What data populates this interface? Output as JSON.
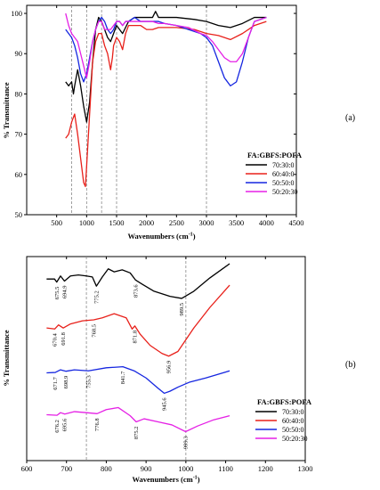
{
  "colors": {
    "70:30:0": "#000000",
    "60:40:0": "#e8201a",
    "50:50:0": "#1526e0",
    "50:20:30": "#e520e5"
  },
  "chart_data": [
    {
      "type": "line",
      "panel_label": "(a)",
      "xlabel": "Wavenumbers (cm",
      "xlabel_sup": "-1",
      "xlabel_tail": ")",
      "ylabel": "% Transmittance",
      "xlim": [
        0,
        4500
      ],
      "ylim": [
        50,
        102
      ],
      "xticks": [
        "500",
        "1000",
        "1500",
        "2000",
        "2500",
        "3000",
        "3500",
        "4000",
        "4500"
      ],
      "yticks": [
        "50",
        "60",
        "70",
        "80",
        "90",
        "100"
      ],
      "guides": [
        750,
        1000,
        1250,
        1500,
        3000
      ],
      "legend_title": "FA:GBFS:POFA",
      "legend_position": "right",
      "series": [
        {
          "name": "70:30:0",
          "color": "#000000",
          "x": [
            650,
            700,
            750,
            780,
            800,
            850,
            900,
            950,
            1000,
            1050,
            1100,
            1150,
            1200,
            1250,
            1300,
            1350,
            1400,
            1450,
            1500,
            1550,
            1600,
            1700,
            1800,
            1900,
            2000,
            2100,
            2150,
            2200,
            2300,
            2500,
            2800,
            3000,
            3200,
            3400,
            3600,
            3800,
            4000
          ],
          "y": [
            83,
            82,
            83,
            80,
            82,
            86,
            82,
            77,
            73,
            78,
            88,
            96,
            99,
            98,
            96,
            94,
            93,
            95,
            97,
            96,
            95,
            98,
            99,
            99,
            99,
            99,
            100.5,
            99,
            99,
            99,
            98.5,
            98,
            97,
            96.5,
            97.5,
            99,
            99
          ]
        },
        {
          "name": "60:40:0",
          "color": "#e8201a",
          "x": [
            650,
            700,
            750,
            800,
            850,
            900,
            950,
            980,
            1000,
            1050,
            1100,
            1150,
            1200,
            1250,
            1300,
            1350,
            1400,
            1430,
            1450,
            1500,
            1550,
            1600,
            1650,
            1700,
            1800,
            1900,
            2000,
            2100,
            2200,
            2300,
            2500,
            2800,
            3000,
            3200,
            3400,
            3600,
            3800,
            4000
          ],
          "y": [
            69,
            70,
            73,
            75,
            70,
            64,
            58,
            57,
            62,
            75,
            88,
            93,
            95,
            95,
            92,
            90,
            86,
            89,
            92,
            94,
            93,
            91,
            95,
            97,
            97,
            97,
            96,
            96,
            96.5,
            96.5,
            96.5,
            96,
            95,
            94.5,
            93.5,
            95,
            97,
            98
          ]
        },
        {
          "name": "50:50:0",
          "color": "#1526e0",
          "x": [
            650,
            700,
            750,
            800,
            850,
            900,
            950,
            1000,
            1050,
            1100,
            1150,
            1200,
            1250,
            1300,
            1350,
            1400,
            1450,
            1500,
            1550,
            1600,
            1650,
            1700,
            1800,
            1900,
            2000,
            2100,
            2200,
            2300,
            2500,
            2700,
            2900,
            3000,
            3100,
            3200,
            3300,
            3400,
            3500,
            3600,
            3700,
            3800,
            4000
          ],
          "y": [
            96,
            95,
            94,
            92,
            89,
            85,
            83,
            85,
            89,
            93,
            96,
            98,
            99,
            98,
            96,
            95,
            96,
            98,
            98,
            97,
            98,
            98,
            99,
            98,
            98,
            98,
            98,
            97.5,
            97,
            96,
            95,
            94,
            92,
            88,
            84,
            82,
            83,
            88,
            94,
            98,
            99
          ]
        },
        {
          "name": "50:20:30",
          "color": "#e520e5",
          "x": [
            650,
            700,
            750,
            800,
            850,
            900,
            950,
            1000,
            1050,
            1100,
            1150,
            1200,
            1250,
            1300,
            1350,
            1400,
            1450,
            1500,
            1550,
            1600,
            1650,
            1700,
            1800,
            1900,
            2000,
            2100,
            2200,
            2300,
            2500,
            2700,
            2900,
            3000,
            3100,
            3200,
            3300,
            3400,
            3500,
            3600,
            3700,
            3800,
            4000
          ],
          "y": [
            100,
            97,
            95,
            94,
            93,
            90,
            87,
            84,
            88,
            93,
            96,
            98,
            98,
            96,
            96,
            96,
            97,
            98,
            98,
            97,
            98,
            98,
            98,
            98,
            98,
            98,
            97.5,
            97.5,
            97,
            96.5,
            95,
            94.5,
            93,
            91,
            89,
            88,
            88,
            90,
            94,
            98,
            99
          ]
        }
      ]
    },
    {
      "type": "line",
      "panel_label": "(b)",
      "xlabel": "Wavenumbers (cm",
      "xlabel_sup": "-1",
      "xlabel_tail": ")",
      "ylabel": "% Transmittance",
      "xlim": [
        600,
        1300
      ],
      "ylim": [
        0,
        10
      ],
      "xticks": [
        "600",
        "700",
        "800",
        "900",
        "1000",
        "1100",
        "1200",
        "1300"
      ],
      "guides": [
        750,
        1000
      ],
      "legend_title": "FA:GBFS:POFA",
      "legend_position": "right",
      "series": [
        {
          "name": "70:30:0",
          "color": "#000000",
          "x": [
            650,
            670,
            675.5,
            685,
            694.9,
            710,
            730,
            750,
            765,
            775.2,
            790,
            805,
            820,
            840,
            860,
            873.6,
            890,
            920,
            960,
            989.5,
            1020,
            1060,
            1110
          ],
          "y": [
            8.9,
            8.9,
            8.75,
            9.05,
            8.8,
            9.05,
            9.1,
            9.05,
            9.0,
            8.55,
            9.0,
            9.4,
            9.25,
            9.35,
            9.2,
            8.85,
            8.65,
            8.3,
            8.05,
            7.95,
            8.3,
            8.95,
            9.65
          ]
        },
        {
          "name": "60:40:0",
          "color": "#e8201a",
          "x": [
            650,
            670.4,
            680,
            691.8,
            710,
            740,
            768.5,
            790,
            820,
            850,
            865,
            871.8,
            885,
            910,
            940,
            956.9,
            980,
            1020,
            1060,
            1110
          ],
          "y": [
            6.5,
            6.45,
            6.65,
            6.5,
            6.7,
            6.85,
            6.9,
            7.0,
            7.2,
            7.0,
            6.45,
            6.6,
            6.2,
            5.65,
            5.25,
            5.12,
            5.35,
            6.5,
            7.5,
            8.6
          ]
        },
        {
          "name": "50:50:0",
          "color": "#1526e0",
          "x": [
            650,
            671.7,
            685,
            698.9,
            720,
            755.3,
            800,
            841.7,
            870,
            900,
            930,
            945.6,
            960,
            980,
            1010,
            1050,
            1110
          ],
          "y": [
            4.3,
            4.32,
            4.45,
            4.38,
            4.45,
            4.4,
            4.55,
            4.6,
            4.4,
            4.05,
            3.55,
            3.3,
            3.4,
            3.6,
            3.85,
            4.05,
            4.4
          ]
        },
        {
          "name": "50:20:30",
          "color": "#e520e5",
          "x": [
            650,
            676.2,
            685,
            695.6,
            720,
            750,
            776.8,
            800,
            830,
            860,
            875.2,
            895,
            930,
            965,
            999.3,
            1030,
            1070,
            1110
          ],
          "y": [
            2.25,
            2.22,
            2.35,
            2.28,
            2.4,
            2.35,
            2.3,
            2.5,
            2.6,
            2.2,
            1.9,
            2.05,
            1.9,
            1.75,
            1.42,
            1.7,
            2.0,
            2.2
          ]
        }
      ],
      "annotations": [
        {
          "text": "675.5",
          "x": 675.5,
          "series": 0
        },
        {
          "text": "694.9",
          "x": 694.9,
          "series": 0
        },
        {
          "text": "775.2",
          "x": 775.2,
          "series": 0
        },
        {
          "text": "873.6",
          "x": 873.6,
          "series": 0
        },
        {
          "text": "989.5",
          "x": 989.5,
          "series": 0
        },
        {
          "text": "670.4",
          "x": 670.4,
          "series": 1
        },
        {
          "text": "691.8",
          "x": 691.8,
          "series": 1
        },
        {
          "text": "768.5",
          "x": 768.5,
          "series": 1
        },
        {
          "text": "871.8",
          "x": 871.8,
          "series": 1
        },
        {
          "text": "956.9",
          "x": 956.9,
          "series": 1
        },
        {
          "text": "671.7",
          "x": 671.7,
          "series": 2
        },
        {
          "text": "698.9",
          "x": 698.9,
          "series": 2
        },
        {
          "text": "755.3",
          "x": 755.3,
          "series": 2
        },
        {
          "text": "841.7",
          "x": 841.7,
          "series": 2
        },
        {
          "text": "945.6",
          "x": 945.6,
          "series": 2
        },
        {
          "text": "676.2",
          "x": 676.2,
          "series": 3
        },
        {
          "text": "695.6",
          "x": 695.6,
          "series": 3
        },
        {
          "text": "776.8",
          "x": 776.8,
          "series": 3
        },
        {
          "text": "875.2",
          "x": 875.2,
          "series": 3
        },
        {
          "text": "999.3",
          "x": 999.3,
          "series": 3
        }
      ]
    }
  ]
}
